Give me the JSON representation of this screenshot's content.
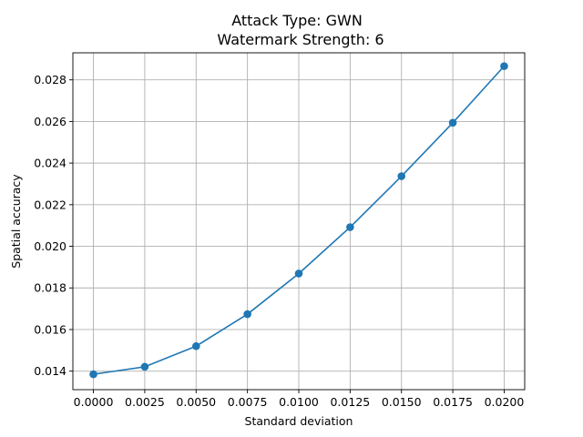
{
  "chart_data": {
    "type": "line",
    "title_line1": "Attack Type: GWN",
    "title_line2": "Watermark Strength: 6",
    "xlabel": "Standard deviation",
    "ylabel": "Spatial accuracy",
    "x": [
      0.0,
      0.0025,
      0.005,
      0.0075,
      0.01,
      0.0125,
      0.015,
      0.0175,
      0.02
    ],
    "series": [
      {
        "name": "Spatial accuracy",
        "color": "#1f77b4",
        "values": [
          0.01385,
          0.01421,
          0.0152,
          0.01674,
          0.01869,
          0.02092,
          0.02337,
          0.02594,
          0.02866
        ]
      }
    ],
    "xlim": [
      -0.001,
      0.021
    ],
    "ylim": [
      0.01311,
      0.0293
    ],
    "xticks": [
      0.0,
      0.0025,
      0.005,
      0.0075,
      0.01,
      0.0125,
      0.015,
      0.0175,
      0.02
    ],
    "xtick_labels": [
      "0.0000",
      "0.0025",
      "0.0050",
      "0.0075",
      "0.0100",
      "0.0125",
      "0.0150",
      "0.0175",
      "0.0200"
    ],
    "yticks": [
      0.014,
      0.016,
      0.018,
      0.02,
      0.022,
      0.024,
      0.026,
      0.028
    ],
    "ytick_labels": [
      "0.014",
      "0.016",
      "0.018",
      "0.020",
      "0.022",
      "0.024",
      "0.026",
      "0.028"
    ],
    "grid": true
  }
}
